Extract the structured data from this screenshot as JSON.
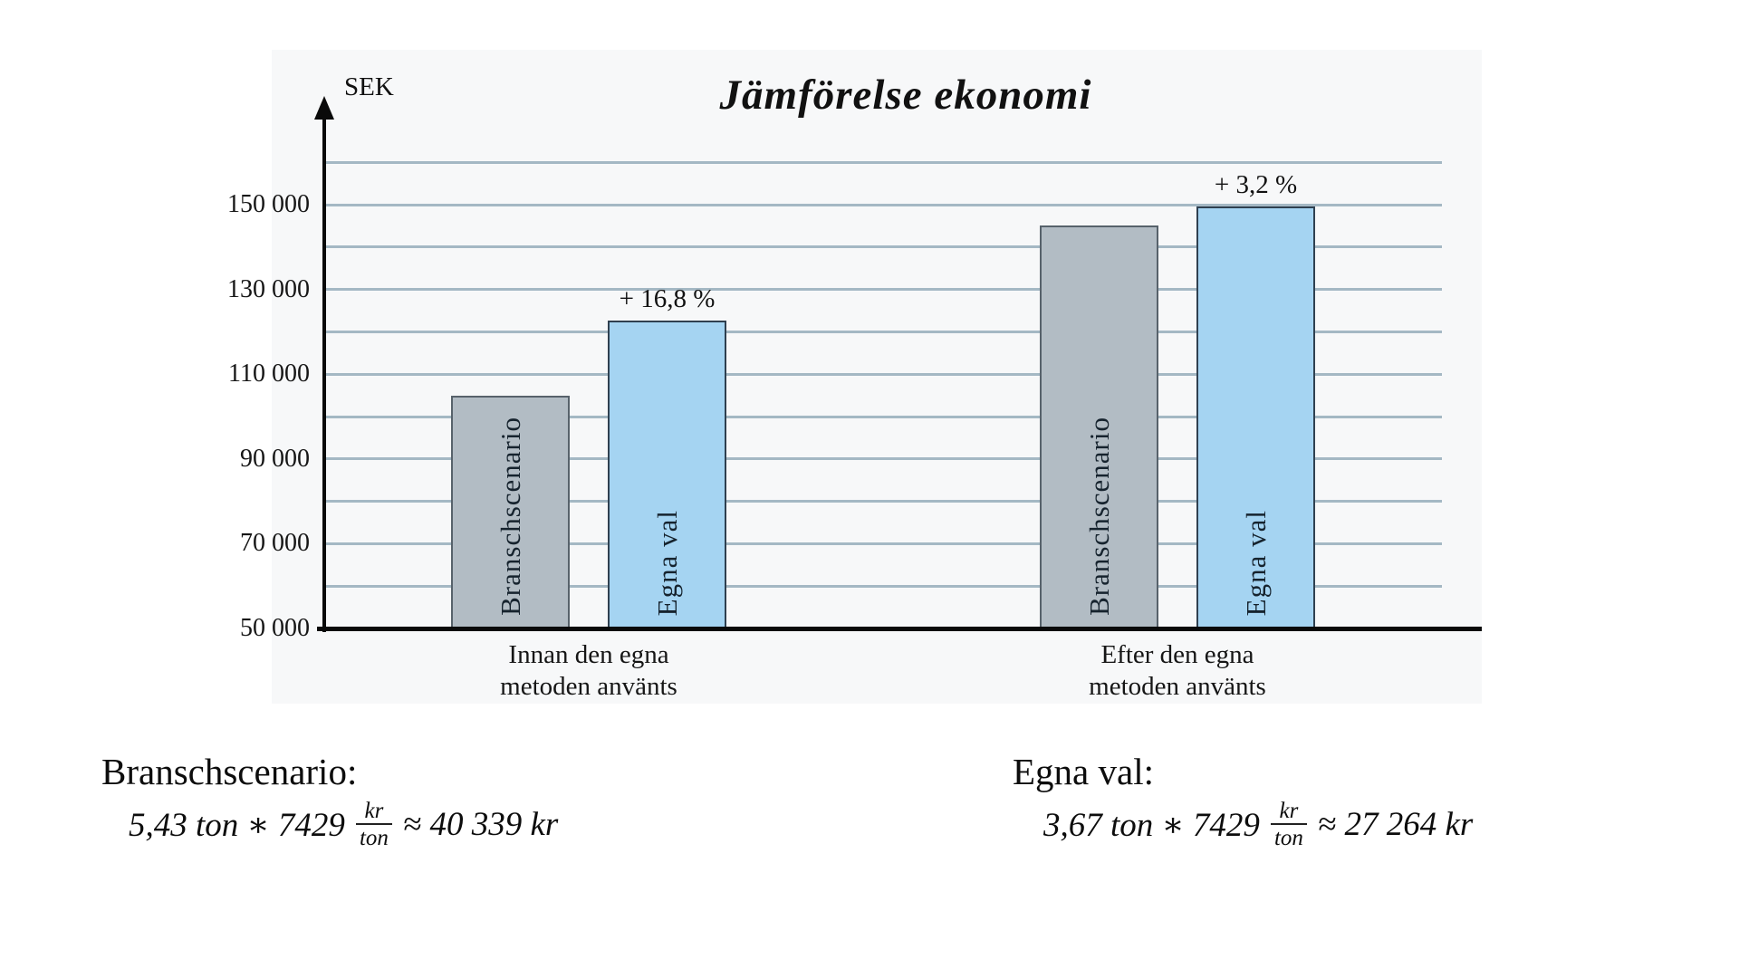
{
  "chart": {
    "title": "Jämförelse ekonomi",
    "y_axis_unit": "SEK",
    "panel_bg": "#f7f8f9",
    "colors": {
      "gray_fill": "#b2bcc4",
      "gray_border": "#57626b",
      "blue_fill": "#a5d4f2",
      "blue_border": "#2f4050",
      "gridline": "#a4b8c4",
      "axis": "#0a0a0a"
    },
    "axis": {
      "grid_values": [
        60000,
        70000,
        80000,
        90000,
        100000,
        110000,
        120000,
        130000,
        140000,
        150000,
        160000
      ],
      "ticks": [
        {
          "label": "150 000",
          "value": 150000
        },
        {
          "label": "130 000",
          "value": 130000
        },
        {
          "label": "110 000",
          "value": 110000
        },
        {
          "label": "90 000",
          "value": 90000
        },
        {
          "label": "70 000",
          "value": 70000
        },
        {
          "label": "50 000",
          "value": 50000
        }
      ]
    }
  },
  "chart_data": {
    "type": "bar",
    "title": "Jämförelse ekonomi",
    "ylabel": "SEK",
    "ylim": [
      50000,
      160000
    ],
    "grid": "horizontal gridlines every 10 000",
    "legend": "series names printed vertically inside bars",
    "categories": [
      "Innan den egna metoden använts",
      "Efter den egna metoden använts"
    ],
    "series": [
      {
        "name": "Branschscenario",
        "style": "gray",
        "values": [
          105000,
          145000
        ]
      },
      {
        "name": "Egna val",
        "style": "blue",
        "values": [
          122600,
          149600
        ]
      }
    ],
    "annotations": [
      {
        "text": "+ 16,8 %",
        "group": 0,
        "series": 1
      },
      {
        "text": "+ 3,2 %",
        "group": 1,
        "series": 1
      }
    ]
  },
  "group_labels": [
    {
      "line1": "Innan den egna",
      "line2": "metoden använts"
    },
    {
      "line1": "Efter den egna",
      "line2": "metoden använts"
    }
  ],
  "formulas": {
    "left": {
      "heading": "Branschscenario:",
      "lhs": "5,43 ton ∗ 7429",
      "frac_num": "kr",
      "frac_den": "ton",
      "rhs": "≈ 40 339 kr"
    },
    "right": {
      "heading": "Egna val:",
      "lhs": "3,67 ton ∗ 7429",
      "frac_num": "kr",
      "frac_den": "ton",
      "rhs": "≈ 27 264 kr"
    }
  }
}
